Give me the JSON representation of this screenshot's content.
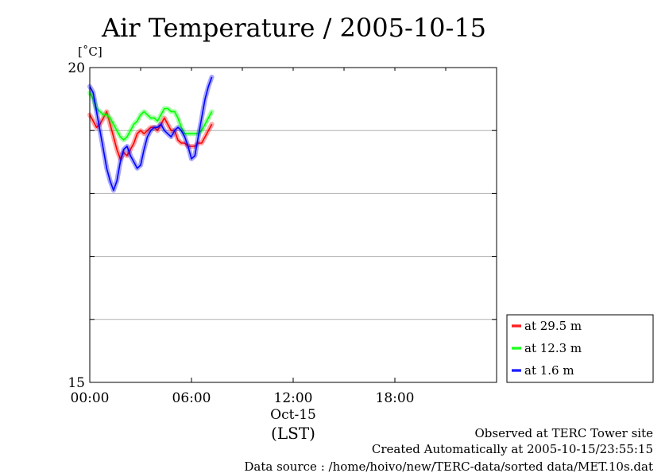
{
  "chart_data": {
    "type": "line",
    "title": "Air Temperature / 2005-10-15",
    "y_unit": "[˚C]",
    "ylim": [
      15,
      20
    ],
    "yticks": [
      15,
      20
    ],
    "ygrid": [
      16,
      17,
      18,
      19
    ],
    "xlim_hours": [
      0,
      24
    ],
    "xticks": [
      {
        "hour": 0,
        "label": "00:00"
      },
      {
        "hour": 6,
        "label": "06:00"
      },
      {
        "hour": 12,
        "label": "12:00"
      },
      {
        "hour": 18,
        "label": "18:00"
      }
    ],
    "xdate_label": "Oct-15",
    "xunit_label": "(LST)",
    "grid": true,
    "legend_position": "right-bottom",
    "series": [
      {
        "name": "at 29.5 m",
        "color": "#ff0000",
        "x": [
          0.0,
          0.2,
          0.4,
          0.6,
          0.8,
          1.0,
          1.2,
          1.4,
          1.6,
          1.8,
          2.0,
          2.2,
          2.4,
          2.6,
          2.8,
          3.0,
          3.2,
          3.4,
          3.6,
          3.8,
          4.0,
          4.2,
          4.4,
          4.6,
          4.8,
          5.0,
          5.2,
          5.4,
          5.6,
          5.8,
          6.0,
          6.2,
          6.4,
          6.6,
          6.8,
          7.0,
          7.2
        ],
        "y": [
          19.25,
          19.15,
          19.05,
          19.1,
          19.2,
          19.3,
          19.1,
          18.9,
          18.7,
          18.55,
          18.65,
          18.6,
          18.7,
          18.8,
          18.95,
          19.0,
          18.95,
          19.0,
          19.05,
          19.05,
          19.0,
          19.1,
          19.2,
          19.1,
          19.0,
          19.0,
          18.85,
          18.8,
          18.8,
          18.75,
          18.75,
          18.75,
          18.8,
          18.8,
          18.9,
          19.0,
          19.1
        ]
      },
      {
        "name": "at 12.3 m",
        "color": "#00ff00",
        "x": [
          0.0,
          0.2,
          0.4,
          0.6,
          0.8,
          1.0,
          1.2,
          1.4,
          1.6,
          1.8,
          2.0,
          2.2,
          2.4,
          2.6,
          2.8,
          3.0,
          3.2,
          3.4,
          3.6,
          3.8,
          4.0,
          4.2,
          4.4,
          4.6,
          4.8,
          5.0,
          5.2,
          5.4,
          5.6,
          5.8,
          6.0,
          6.2,
          6.4,
          6.6,
          6.8,
          7.0,
          7.2
        ],
        "y": [
          19.6,
          19.5,
          19.35,
          19.3,
          19.25,
          19.25,
          19.2,
          19.1,
          19.0,
          18.9,
          18.85,
          18.9,
          19.0,
          19.1,
          19.15,
          19.25,
          19.3,
          19.25,
          19.2,
          19.2,
          19.15,
          19.25,
          19.35,
          19.35,
          19.3,
          19.3,
          19.2,
          19.05,
          18.95,
          18.95,
          18.95,
          18.95,
          18.95,
          19.0,
          19.1,
          19.2,
          19.3
        ]
      },
      {
        "name": "at 1.6 m",
        "color": "#0000ff",
        "x": [
          0.0,
          0.2,
          0.4,
          0.6,
          0.8,
          1.0,
          1.2,
          1.4,
          1.6,
          1.8,
          2.0,
          2.2,
          2.4,
          2.6,
          2.8,
          3.0,
          3.2,
          3.4,
          3.6,
          3.8,
          4.0,
          4.2,
          4.4,
          4.6,
          4.8,
          5.0,
          5.2,
          5.4,
          5.6,
          5.8,
          6.0,
          6.2,
          6.4,
          6.6,
          6.8,
          7.0,
          7.2
        ],
        "y": [
          19.7,
          19.6,
          19.3,
          19.0,
          18.7,
          18.4,
          18.2,
          18.05,
          18.2,
          18.5,
          18.7,
          18.75,
          18.6,
          18.5,
          18.4,
          18.45,
          18.7,
          18.9,
          19.0,
          19.05,
          19.05,
          19.1,
          19.0,
          18.95,
          18.9,
          19.0,
          19.05,
          19.0,
          18.9,
          18.75,
          18.55,
          18.6,
          18.9,
          19.2,
          19.5,
          19.7,
          19.85
        ]
      }
    ]
  },
  "footer": {
    "observed": "Observed at TERC Tower site",
    "created": "Created Automatically at 2005-10-15/23:55:15",
    "source": "Data source : /home/hoivo/new/TERC-data/sorted  data/MET.10s.dat"
  }
}
